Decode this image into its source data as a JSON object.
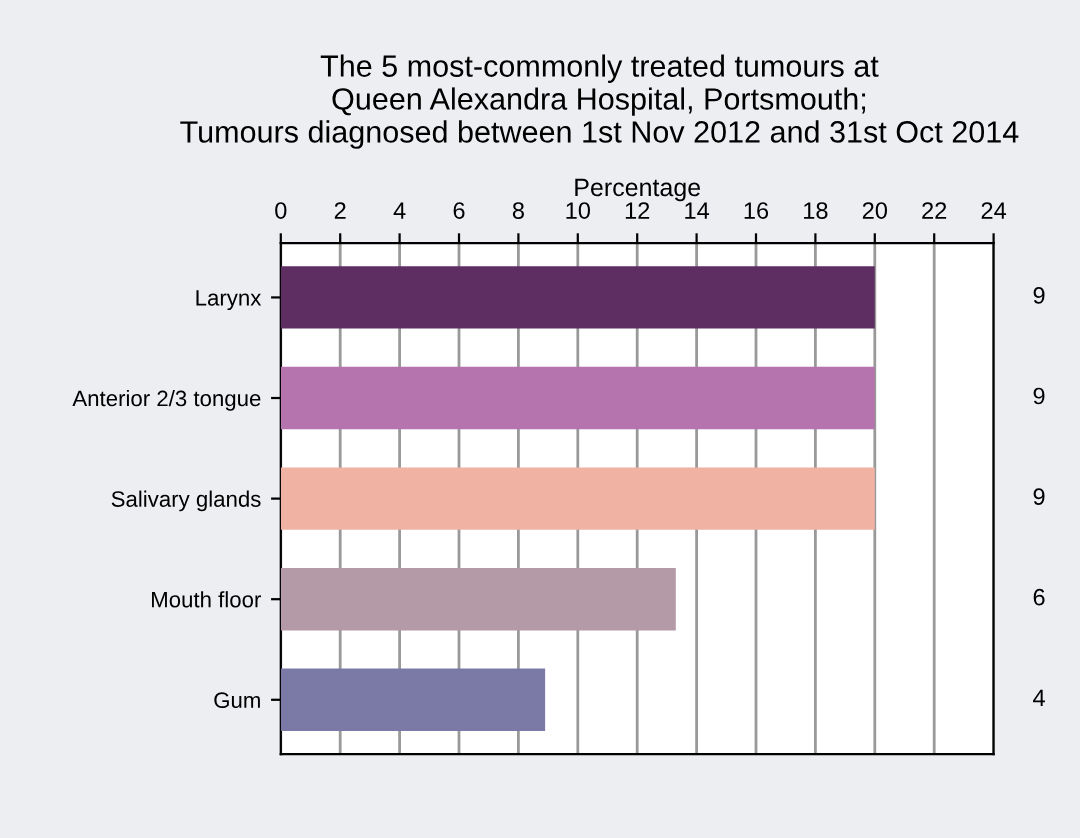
{
  "chart_data": {
    "type": "bar",
    "orientation": "horizontal",
    "title": "The 5 most-commonly treated tumours at\nQueen Alexandra Hospital, Portsmouth;\nTumours diagnosed between 1st Nov 2012 and 31st Oct 2014",
    "xlabel": "Percentage",
    "categories": [
      "Larynx",
      "Anterior 2/3 tongue",
      "Salivary glands",
      "Mouth floor",
      "Gum"
    ],
    "values": [
      20,
      20,
      20,
      13.3,
      8.9
    ],
    "colors": [
      "#5e2d62",
      "#b574ae",
      "#f0b2a3",
      "#b39aa6",
      "#7b7aa6"
    ],
    "annotations": [
      "9",
      "9",
      "9",
      "6",
      "4"
    ],
    "xlim": [
      0,
      24
    ],
    "xticks": [
      0,
      2,
      4,
      6,
      8,
      10,
      12,
      14,
      16,
      18,
      20,
      22,
      24
    ],
    "grid": "x",
    "legend": false
  }
}
